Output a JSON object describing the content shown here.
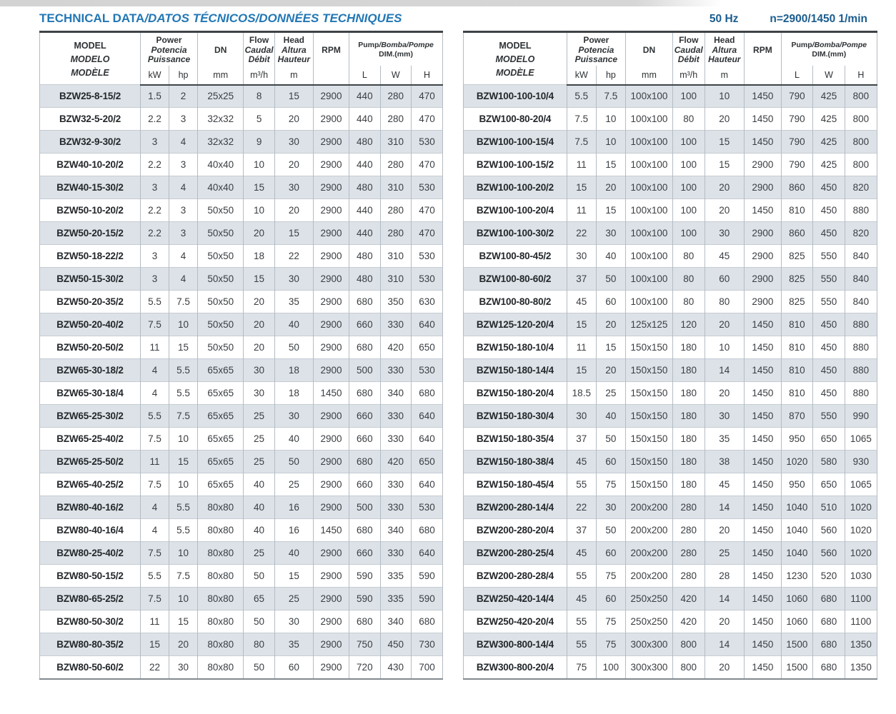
{
  "page": {
    "title_en": "TECHNICAL DATA",
    "title_rest": "/DATOS TÉCNICOS/DONNÉES TECHNIQUES",
    "frequency": "50 Hz",
    "speed": "n=2900/1450 1/min"
  },
  "header": {
    "model": [
      "MODEL",
      "MODELO",
      "MODÈLE"
    ],
    "power": [
      "Power",
      "Potencia",
      "Puissance"
    ],
    "dn": "DN",
    "flow": [
      "Flow",
      "Caudal",
      "Débit"
    ],
    "head": [
      "Head",
      "Altura",
      "Hauteur"
    ],
    "rpm": "RPM",
    "dim_en": "Pump",
    "dim_rest": "/Bomba/Pompe",
    "dim_sub": "DIM.(mm)",
    "units": {
      "kw": "kW",
      "hp": "hp",
      "dn": "mm",
      "flow": "m³/h",
      "head": "m",
      "rpm": "",
      "l": "L",
      "w": "W",
      "h": "H"
    }
  },
  "columns": [
    "model",
    "kw",
    "hp",
    "dn",
    "flow",
    "head",
    "rpm",
    "dim-l",
    "dim-w",
    "dim-h"
  ],
  "tables": {
    "left": {
      "rows": [
        [
          "BZW25-8-15/2",
          "1.5",
          "2",
          "25x25",
          "8",
          "15",
          "2900",
          "440",
          "280",
          "470"
        ],
        [
          "BZW32-5-20/2",
          "2.2",
          "3",
          "32x32",
          "5",
          "20",
          "2900",
          "440",
          "280",
          "470"
        ],
        [
          "BZW32-9-30/2",
          "3",
          "4",
          "32x32",
          "9",
          "30",
          "2900",
          "480",
          "310",
          "530"
        ],
        [
          "BZW40-10-20/2",
          "2.2",
          "3",
          "40x40",
          "10",
          "20",
          "2900",
          "440",
          "280",
          "470"
        ],
        [
          "BZW40-15-30/2",
          "3",
          "4",
          "40x40",
          "15",
          "30",
          "2900",
          "480",
          "310",
          "530"
        ],
        [
          "BZW50-10-20/2",
          "2.2",
          "3",
          "50x50",
          "10",
          "20",
          "2900",
          "440",
          "280",
          "470"
        ],
        [
          "BZW50-20-15/2",
          "2.2",
          "3",
          "50x50",
          "20",
          "15",
          "2900",
          "440",
          "280",
          "470"
        ],
        [
          "BZW50-18-22/2",
          "3",
          "4",
          "50x50",
          "18",
          "22",
          "2900",
          "480",
          "310",
          "530"
        ],
        [
          "BZW50-15-30/2",
          "3",
          "4",
          "50x50",
          "15",
          "30",
          "2900",
          "480",
          "310",
          "530"
        ],
        [
          "BZW50-20-35/2",
          "5.5",
          "7.5",
          "50x50",
          "20",
          "35",
          "2900",
          "680",
          "350",
          "630"
        ],
        [
          "BZW50-20-40/2",
          "7.5",
          "10",
          "50x50",
          "20",
          "40",
          "2900",
          "660",
          "330",
          "640"
        ],
        [
          "BZW50-20-50/2",
          "11",
          "15",
          "50x50",
          "20",
          "50",
          "2900",
          "680",
          "420",
          "650"
        ],
        [
          "BZW65-30-18/2",
          "4",
          "5.5",
          "65x65",
          "30",
          "18",
          "2900",
          "500",
          "330",
          "530"
        ],
        [
          "BZW65-30-18/4",
          "4",
          "5.5",
          "65x65",
          "30",
          "18",
          "1450",
          "680",
          "340",
          "680"
        ],
        [
          "BZW65-25-30/2",
          "5.5",
          "7.5",
          "65x65",
          "25",
          "30",
          "2900",
          "660",
          "330",
          "640"
        ],
        [
          "BZW65-25-40/2",
          "7.5",
          "10",
          "65x65",
          "25",
          "40",
          "2900",
          "660",
          "330",
          "640"
        ],
        [
          "BZW65-25-50/2",
          "11",
          "15",
          "65x65",
          "25",
          "50",
          "2900",
          "680",
          "420",
          "650"
        ],
        [
          "BZW65-40-25/2",
          "7.5",
          "10",
          "65x65",
          "40",
          "25",
          "2900",
          "660",
          "330",
          "640"
        ],
        [
          "BZW80-40-16/2",
          "4",
          "5.5",
          "80x80",
          "40",
          "16",
          "2900",
          "500",
          "330",
          "530"
        ],
        [
          "BZW80-40-16/4",
          "4",
          "5.5",
          "80x80",
          "40",
          "16",
          "1450",
          "680",
          "340",
          "680"
        ],
        [
          "BZW80-25-40/2",
          "7.5",
          "10",
          "80x80",
          "25",
          "40",
          "2900",
          "660",
          "330",
          "640"
        ],
        [
          "BZW80-50-15/2",
          "5.5",
          "7.5",
          "80x80",
          "50",
          "15",
          "2900",
          "590",
          "335",
          "590"
        ],
        [
          "BZW80-65-25/2",
          "7.5",
          "10",
          "80x80",
          "65",
          "25",
          "2900",
          "590",
          "335",
          "590"
        ],
        [
          "BZW80-50-30/2",
          "11",
          "15",
          "80x80",
          "50",
          "30",
          "2900",
          "680",
          "340",
          "680"
        ],
        [
          "BZW80-80-35/2",
          "15",
          "20",
          "80x80",
          "80",
          "35",
          "2900",
          "750",
          "450",
          "730"
        ],
        [
          "BZW80-50-60/2",
          "22",
          "30",
          "80x80",
          "50",
          "60",
          "2900",
          "720",
          "430",
          "700"
        ]
      ]
    },
    "right": {
      "rows": [
        [
          "BZW100-100-10/4",
          "5.5",
          "7.5",
          "100x100",
          "100",
          "10",
          "1450",
          "790",
          "425",
          "800"
        ],
        [
          "BZW100-80-20/4",
          "7.5",
          "10",
          "100x100",
          "80",
          "20",
          "1450",
          "790",
          "425",
          "800"
        ],
        [
          "BZW100-100-15/4",
          "7.5",
          "10",
          "100x100",
          "100",
          "15",
          "1450",
          "790",
          "425",
          "800"
        ],
        [
          "BZW100-100-15/2",
          "11",
          "15",
          "100x100",
          "100",
          "15",
          "2900",
          "790",
          "425",
          "800"
        ],
        [
          "BZW100-100-20/2",
          "15",
          "20",
          "100x100",
          "100",
          "20",
          "2900",
          "860",
          "450",
          "820"
        ],
        [
          "BZW100-100-20/4",
          "11",
          "15",
          "100x100",
          "100",
          "20",
          "1450",
          "810",
          "450",
          "880"
        ],
        [
          "BZW100-100-30/2",
          "22",
          "30",
          "100x100",
          "100",
          "30",
          "2900",
          "860",
          "450",
          "820"
        ],
        [
          "BZW100-80-45/2",
          "30",
          "40",
          "100x100",
          "80",
          "45",
          "2900",
          "825",
          "550",
          "840"
        ],
        [
          "BZW100-80-60/2",
          "37",
          "50",
          "100x100",
          "80",
          "60",
          "2900",
          "825",
          "550",
          "840"
        ],
        [
          "BZW100-80-80/2",
          "45",
          "60",
          "100x100",
          "80",
          "80",
          "2900",
          "825",
          "550",
          "840"
        ],
        [
          "BZW125-120-20/4",
          "15",
          "20",
          "125x125",
          "120",
          "20",
          "1450",
          "810",
          "450",
          "880"
        ],
        [
          "BZW150-180-10/4",
          "11",
          "15",
          "150x150",
          "180",
          "10",
          "1450",
          "810",
          "450",
          "880"
        ],
        [
          "BZW150-180-14/4",
          "15",
          "20",
          "150x150",
          "180",
          "14",
          "1450",
          "810",
          "450",
          "880"
        ],
        [
          "BZW150-180-20/4",
          "18.5",
          "25",
          "150x150",
          "180",
          "20",
          "1450",
          "810",
          "450",
          "880"
        ],
        [
          "BZW150-180-30/4",
          "30",
          "40",
          "150x150",
          "180",
          "30",
          "1450",
          "870",
          "550",
          "990"
        ],
        [
          "BZW150-180-35/4",
          "37",
          "50",
          "150x150",
          "180",
          "35",
          "1450",
          "950",
          "650",
          "1065"
        ],
        [
          "BZW150-180-38/4",
          "45",
          "60",
          "150x150",
          "180",
          "38",
          "1450",
          "1020",
          "580",
          "930"
        ],
        [
          "BZW150-180-45/4",
          "55",
          "75",
          "150x150",
          "180",
          "45",
          "1450",
          "950",
          "650",
          "1065"
        ],
        [
          "BZW200-280-14/4",
          "22",
          "30",
          "200x200",
          "280",
          "14",
          "1450",
          "1040",
          "510",
          "1020"
        ],
        [
          "BZW200-280-20/4",
          "37",
          "50",
          "200x200",
          "280",
          "20",
          "1450",
          "1040",
          "560",
          "1020"
        ],
        [
          "BZW200-280-25/4",
          "45",
          "60",
          "200x200",
          "280",
          "25",
          "1450",
          "1040",
          "560",
          "1020"
        ],
        [
          "BZW200-280-28/4",
          "55",
          "75",
          "200x200",
          "280",
          "28",
          "1450",
          "1230",
          "520",
          "1030"
        ],
        [
          "BZW250-420-14/4",
          "45",
          "60",
          "250x250",
          "420",
          "14",
          "1450",
          "1060",
          "680",
          "1100"
        ],
        [
          "BZW250-420-20/4",
          "55",
          "75",
          "250x250",
          "420",
          "20",
          "1450",
          "1060",
          "680",
          "1100"
        ],
        [
          "BZW300-800-14/4",
          "55",
          "75",
          "300x300",
          "800",
          "14",
          "1450",
          "1500",
          "680",
          "1350"
        ],
        [
          "BZW300-800-20/4",
          "75",
          "100",
          "300x300",
          "800",
          "20",
          "1450",
          "1500",
          "680",
          "1350"
        ]
      ]
    }
  },
  "colors": {
    "title_blue": "#2277b4",
    "frequency_blue": "#1b5c8e",
    "row_shade": "#dce2e8",
    "text_dark": "#3a3e42",
    "border_dark": "#3e4347"
  }
}
